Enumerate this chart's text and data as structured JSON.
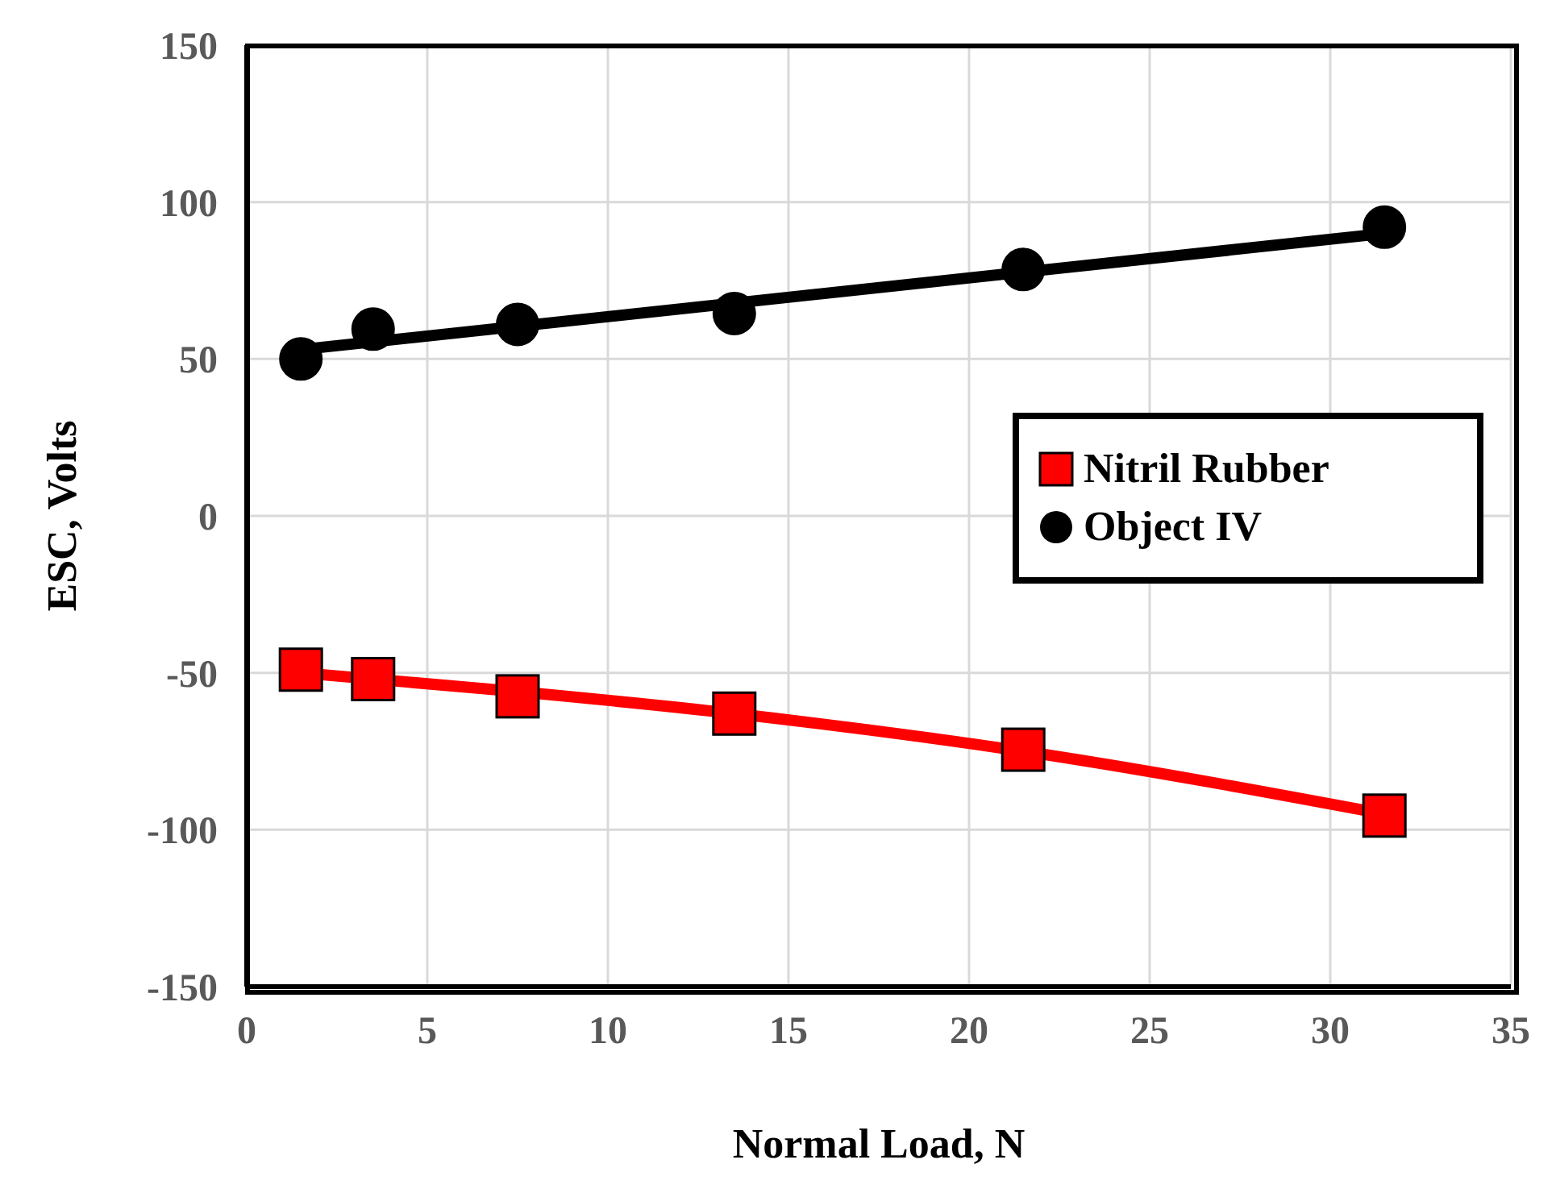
{
  "chart_data": {
    "type": "scatter",
    "xlabel": "Normal Load, N",
    "ylabel": "ESC, Volts",
    "xlim": [
      0,
      35
    ],
    "xticks": [
      0,
      5,
      10,
      15,
      20,
      25,
      30,
      35
    ],
    "ylim": [
      -150,
      150
    ],
    "yticks": [
      -150,
      -100,
      -50,
      0,
      50,
      100,
      150
    ],
    "grid": true,
    "legend": "right",
    "series": [
      {
        "name": "Nitril Rubber",
        "marker": "square",
        "color": "#ff0000",
        "x": [
          1.5,
          3.5,
          7.5,
          13.5,
          21.5,
          31.5
        ],
        "values": [
          -49,
          -52,
          -57.5,
          -63,
          -74.5,
          -95.5
        ]
      },
      {
        "name": "Object IV",
        "marker": "circle",
        "color": "#000000",
        "x": [
          1.5,
          3.5,
          7.5,
          13.5,
          21.5,
          31.5
        ],
        "values": [
          50,
          59.5,
          61,
          64.5,
          78.5,
          92
        ]
      },
      {
        "type": "line",
        "color": "#ff0000",
        "x": [
          1.5,
          7.5,
          13.5,
          21.5,
          31.5
        ],
        "values": [
          -50,
          -56,
          -63,
          -75,
          -95
        ]
      },
      {
        "type": "line",
        "color": "#000000",
        "x": [
          1.5,
          31.5
        ],
        "values": [
          53,
          90
        ]
      }
    ]
  }
}
